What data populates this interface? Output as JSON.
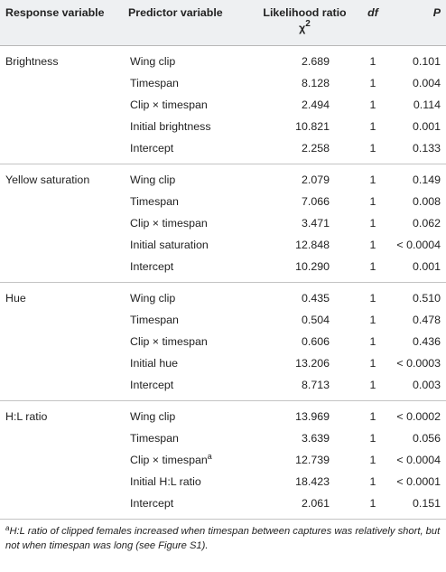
{
  "headers": {
    "response": "Response variable",
    "predictor": "Predictor variable",
    "likelihood": "Likelihood ratio χ",
    "likelihood_sup": "2",
    "df": "df",
    "p": "P"
  },
  "groups": [
    {
      "response": "Brightness",
      "rows": [
        {
          "predictor": "Wing clip",
          "lr": "2.689",
          "df": "1",
          "p": "0.101"
        },
        {
          "predictor": "Timespan",
          "lr": "8.128",
          "df": "1",
          "p": "0.004"
        },
        {
          "predictor": "Clip × timespan",
          "lr": "2.494",
          "df": "1",
          "p": "0.114"
        },
        {
          "predictor": "Initial brightness",
          "lr": "10.821",
          "df": "1",
          "p": "0.001"
        },
        {
          "predictor": "Intercept",
          "lr": "2.258",
          "df": "1",
          "p": "0.133"
        }
      ]
    },
    {
      "response": "Yellow saturation",
      "rows": [
        {
          "predictor": "Wing clip",
          "lr": "2.079",
          "df": "1",
          "p": "0.149"
        },
        {
          "predictor": "Timespan",
          "lr": "7.066",
          "df": "1",
          "p": "0.008"
        },
        {
          "predictor": "Clip × timespan",
          "lr": "3.471",
          "df": "1",
          "p": "0.062"
        },
        {
          "predictor": "Initial saturation",
          "lr": "12.848",
          "df": "1",
          "p": "< 0.0004"
        },
        {
          "predictor": "Intercept",
          "lr": "10.290",
          "df": "1",
          "p": "0.001"
        }
      ]
    },
    {
      "response": "Hue",
      "rows": [
        {
          "predictor": "Wing clip",
          "lr": "0.435",
          "df": "1",
          "p": "0.510"
        },
        {
          "predictor": "Timespan",
          "lr": "0.504",
          "df": "1",
          "p": "0.478"
        },
        {
          "predictor": "Clip × timespan",
          "lr": "0.606",
          "df": "1",
          "p": "0.436"
        },
        {
          "predictor": "Initial hue",
          "lr": "13.206",
          "df": "1",
          "p": "< 0.0003"
        },
        {
          "predictor": "Intercept",
          "lr": "8.713",
          "df": "1",
          "p": "0.003"
        }
      ]
    },
    {
      "response": "H:L ratio",
      "rows": [
        {
          "predictor": "Wing clip",
          "lr": "13.969",
          "df": "1",
          "p": "< 0.0002"
        },
        {
          "predictor": "Timespan",
          "lr": "3.639",
          "df": "1",
          "p": "0.056"
        },
        {
          "predictor": "Clip × timespan",
          "predictor_sup": "a",
          "lr": "12.739",
          "df": "1",
          "p": "< 0.0004"
        },
        {
          "predictor": "Initial H:L ratio",
          "lr": "18.423",
          "df": "1",
          "p": "< 0.0001"
        },
        {
          "predictor": "Intercept",
          "lr": "2.061",
          "df": "1",
          "p": "0.151"
        }
      ]
    }
  ],
  "footnote": {
    "marker": "a",
    "text": "H:L ratio of clipped females increased when timespan between captures was relatively short, but not when timespan was long (see Figure S1)."
  }
}
